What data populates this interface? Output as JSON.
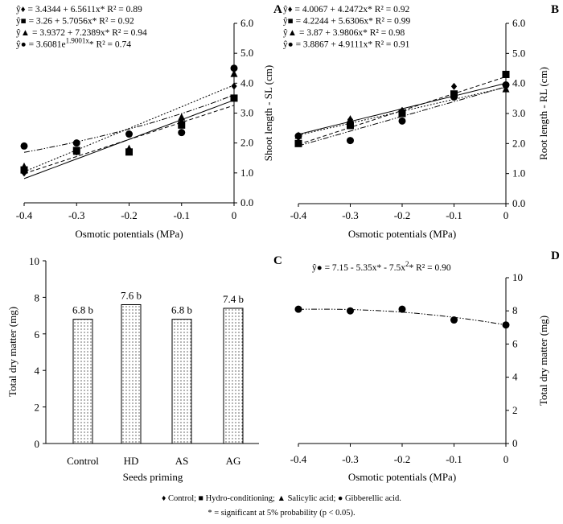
{
  "chart_data": [
    {
      "panel": "A",
      "type": "scatter",
      "xlabel": "Osmotic potentials (MPa)",
      "ylabel": "Shoot length - SL (cm)",
      "x": [
        -0.4,
        -0.3,
        -0.2,
        -0.1,
        0
      ],
      "xticks": [
        "-0.4",
        "-0.3",
        "-0.2",
        "-0.1",
        "0"
      ],
      "ylim": [
        0,
        6
      ],
      "yticks": [
        "0.0",
        "1.0",
        "2.0",
        "3.0",
        "4.0",
        "5.0",
        "6.0"
      ],
      "series": [
        {
          "name": "Control",
          "marker": "diamond",
          "line": "solid",
          "fit": {
            "type": "linear",
            "a": 3.4344,
            "b": 6.5611
          },
          "values": [
            1.0,
            1.7,
            2.3,
            2.7,
            3.9
          ]
        },
        {
          "name": "Hydro-conditioning",
          "marker": "square",
          "line": "dashed",
          "fit": {
            "type": "linear",
            "a": 3.26,
            "b": 5.7056
          },
          "values": [
            1.1,
            1.75,
            1.7,
            2.6,
            3.5
          ]
        },
        {
          "name": "Salicylic acid",
          "marker": "triangle",
          "line": "dotted",
          "fit": {
            "type": "linear",
            "a": 3.9372,
            "b": 7.2389
          },
          "values": [
            1.2,
            1.7,
            1.8,
            2.85,
            4.3
          ]
        },
        {
          "name": "Gibberellic acid",
          "marker": "circle",
          "line": "dashdotdot",
          "fit": {
            "type": "exponential",
            "a": 3.6081,
            "b": 1.9001
          },
          "values": [
            1.9,
            2.0,
            2.3,
            2.35,
            4.5
          ]
        }
      ],
      "equations": [
        {
          "pre": "ŷ♦ = 3.4344 + 6.5611x* R² = 0.89"
        },
        {
          "pre": "ŷ■ = 3.26 + 5.7056x* R² = 0.92"
        },
        {
          "pre": "ŷ▲ = 3.9372 + 7.2389x* R² = 0.94"
        },
        {
          "pre": "ŷ● = 3.6081e",
          "sup": "1.9001x",
          "post": "* R² = 0.74"
        }
      ]
    },
    {
      "panel": "B",
      "type": "scatter",
      "xlabel": "Osmotic potentials (MPa)",
      "ylabel": "Root length - RL  (cm)",
      "x": [
        -0.4,
        -0.3,
        -0.2,
        -0.1,
        0
      ],
      "xticks": [
        "-0.4",
        "-0.3",
        "-0.2",
        "-0.1",
        "0"
      ],
      "ylim": [
        0,
        6
      ],
      "yticks": [
        "0.0",
        "1.0",
        "2.0",
        "3.0",
        "4.0",
        "5.0",
        "6.0"
      ],
      "series": [
        {
          "name": "Control",
          "marker": "diamond",
          "line": "solid",
          "fit": {
            "type": "linear",
            "a": 4.0067,
            "b": 4.2472
          },
          "values": [
            2.2,
            2.8,
            3.1,
            3.9,
            3.95
          ]
        },
        {
          "name": "Hydro-conditioning",
          "marker": "square",
          "line": "dashed",
          "fit": {
            "type": "linear",
            "a": 4.2244,
            "b": 5.6306
          },
          "values": [
            2.0,
            2.6,
            3.0,
            3.65,
            4.3
          ]
        },
        {
          "name": "Salicylic acid",
          "marker": "triangle",
          "line": "dotted",
          "fit": {
            "type": "linear",
            "a": 3.87,
            "b": 3.9806
          },
          "values": [
            2.25,
            2.8,
            3.05,
            3.6,
            3.8
          ]
        },
        {
          "name": "Gibberellic acid",
          "marker": "circle",
          "line": "dashdotdot",
          "fit": {
            "type": "linear",
            "a": 3.8867,
            "b": 4.9111
          },
          "values": [
            2.25,
            2.1,
            2.75,
            3.55,
            3.95
          ]
        }
      ],
      "equations": [
        {
          "pre": "ŷ♦  = 4.0067 + 4.2472x* R² = 0.92"
        },
        {
          "pre": "ŷ■  = 4.2244 + 5.6306x* R² = 0.99"
        },
        {
          "pre": "ŷ▲  = 3.87 + 3.9806x* R² = 0.98"
        },
        {
          "pre": "ŷ●  = 3.8867 + 4.9111x* R² = 0.91"
        }
      ]
    },
    {
      "panel": "C",
      "type": "bar",
      "xlabel": "Seeds priming",
      "ylabel": "Total dry matter (mg)",
      "categories": [
        "Control",
        "HD",
        "AS",
        "AG"
      ],
      "values": [
        6.8,
        7.6,
        6.8,
        7.4
      ],
      "labels": [
        "6.8 b",
        "7.6 b",
        "6.8 b",
        "7.4 b"
      ],
      "ylim": [
        0,
        10
      ],
      "yticks": [
        "0",
        "2",
        "4",
        "6",
        "8",
        "10"
      ],
      "fill": "dotted"
    },
    {
      "panel": "D",
      "type": "scatter",
      "xlabel": "Osmotic potentials (MPa)",
      "ylabel": "Total dry matter (mg)",
      "x": [
        -0.4,
        -0.3,
        -0.2,
        -0.1,
        0
      ],
      "xticks": [
        "-0.4",
        "-0.3",
        "-0.2",
        "-0.1",
        "0"
      ],
      "ylim": [
        0,
        10
      ],
      "yticks": [
        "0",
        "2",
        "4",
        "6",
        "8",
        "10"
      ],
      "series": [
        {
          "name": "Gibberellic acid",
          "marker": "circle",
          "line": "dashdotdot",
          "fit": {
            "type": "quadratic",
            "a": 7.15,
            "b": -5.35,
            "c": -7.5
          },
          "values": [
            8.1,
            8.0,
            8.1,
            7.45,
            7.15
          ]
        }
      ],
      "equations": [
        {
          "pre": "ŷ●  = 7.15 - 5.35x* - 7.5x",
          "sup": "2",
          "post": "*  R² = 0.90"
        }
      ]
    }
  ],
  "legend": {
    "items": [
      {
        "marker": "diamond",
        "label": "♦ Control;"
      },
      {
        "marker": "square",
        "label": "■ Hydro-conditioning;"
      },
      {
        "marker": "triangle",
        "label": "▲ Salicylic acid;"
      },
      {
        "marker": "circle",
        "label": "● Gibberellic acid."
      }
    ],
    "note": "* = significant at 5% probability (p < 0.05)."
  },
  "colors": {
    "ink": "#000000",
    "background": "#ffffff",
    "bar_fill": "#ffffff"
  }
}
